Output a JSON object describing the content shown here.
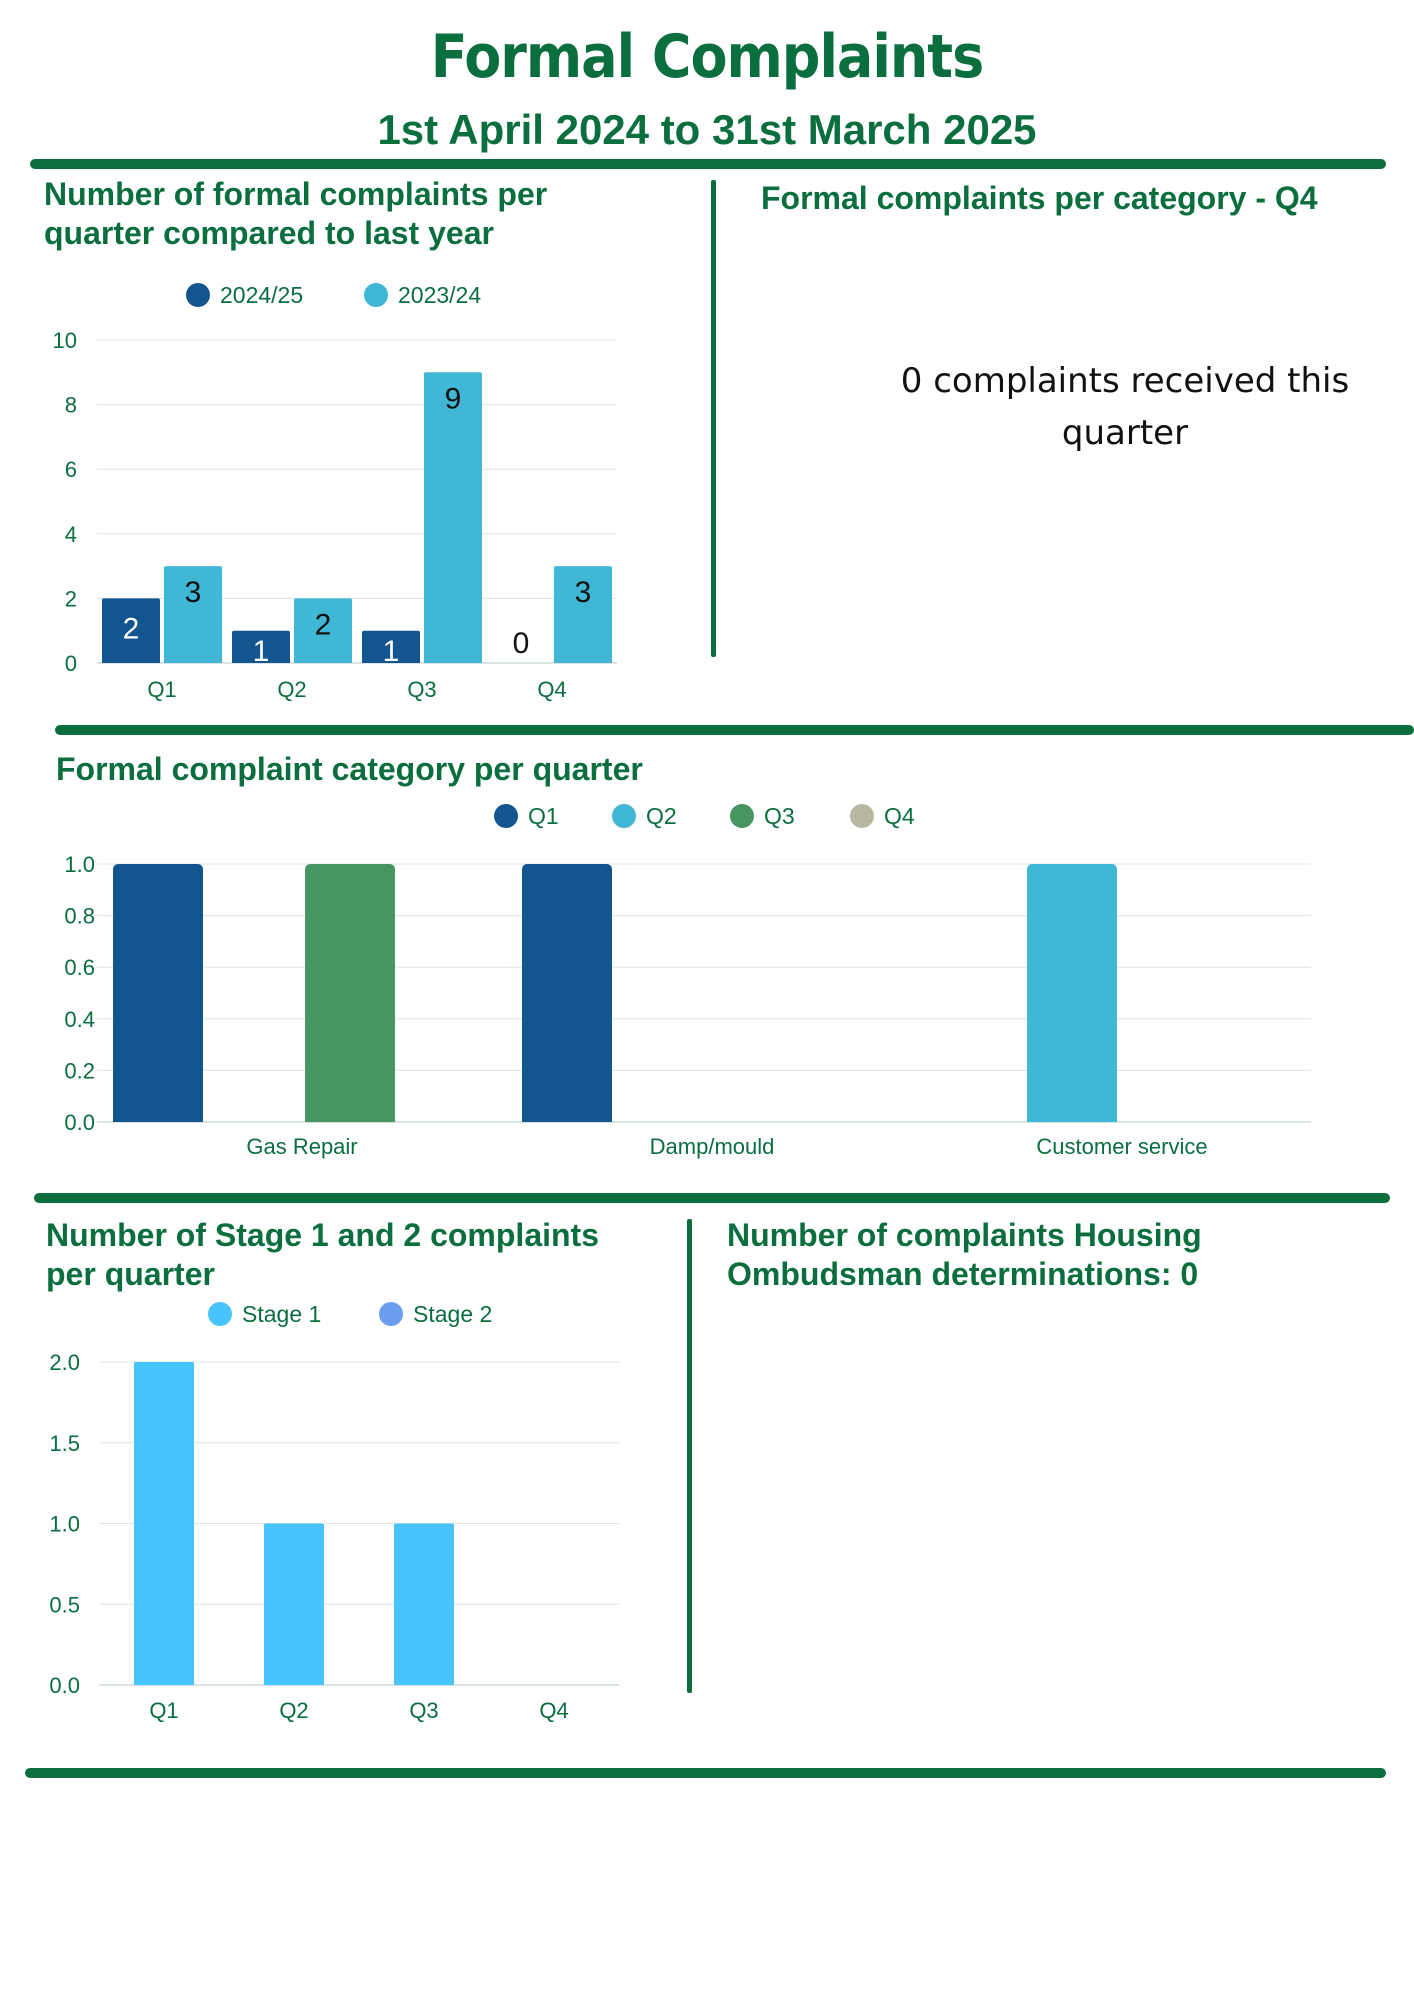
{
  "header": {
    "title": "Formal Complaints",
    "subtitle": "1st April 2024 to 31st March 2025"
  },
  "colors": {
    "brand_green": "#0b6e3f",
    "dark_blue": "#13558f",
    "teal": "#41b7d6",
    "green": "#469561",
    "grey": "#b8b7a2",
    "light_blue": "#47c4fb",
    "periwinkle": "#6c9ef0"
  },
  "section_quarterly": {
    "title_line1": "Number of formal complaints per",
    "title_line2": "quarter compared to last year"
  },
  "section_category_q4": {
    "title": "Formal complaints per category - Q4",
    "note_line1": "0 complaints received this",
    "note_line2": "quarter"
  },
  "section_category_quarter": {
    "title": "Formal complaint category per quarter"
  },
  "section_stage": {
    "title_line1": "Number of Stage 1 and 2 complaints",
    "title_line2": "per quarter"
  },
  "section_ombudsman": {
    "title_line1": "Number of complaints  Housing",
    "title_line2": "Ombudsman determinations: 0"
  },
  "chart_data": [
    {
      "type": "bar",
      "categories": [
        "Q1",
        "Q2",
        "Q3",
        "Q4"
      ],
      "series": [
        {
          "name": "2024/25",
          "values": [
            2,
            1,
            1,
            0
          ],
          "color": "#13558f"
        },
        {
          "name": "2023/24",
          "values": [
            3,
            2,
            9,
            3
          ],
          "color": "#41b7d6"
        }
      ],
      "ylim": [
        0,
        10
      ],
      "yticks": [
        "0",
        "2",
        "4",
        "6",
        "8",
        "10"
      ],
      "data_labels": true,
      "legend": "top-center",
      "grid": true
    },
    {
      "type": "bar",
      "categories": [
        "Gas Repair",
        "Damp/mould",
        "Customer service"
      ],
      "series": [
        {
          "name": "Q1",
          "values": [
            1,
            1,
            0
          ],
          "color": "#13558f"
        },
        {
          "name": "Q2",
          "values": [
            0,
            0,
            1
          ],
          "color": "#41b7d6"
        },
        {
          "name": "Q3",
          "values": [
            1,
            0,
            0
          ],
          "color": "#469561"
        },
        {
          "name": "Q4",
          "values": [
            0,
            0,
            0
          ],
          "color": "#b8b7a2"
        }
      ],
      "ylim": [
        0,
        1
      ],
      "yticks": [
        "0.0",
        "0.2",
        "0.4",
        "0.6",
        "0.8",
        "1.0"
      ],
      "legend": "top-center",
      "grid": true
    },
    {
      "type": "bar",
      "categories": [
        "Q1",
        "Q2",
        "Q3",
        "Q4"
      ],
      "series": [
        {
          "name": "Stage 1",
          "values": [
            2,
            1,
            1,
            0
          ],
          "color": "#47c4fb"
        },
        {
          "name": "Stage 2",
          "values": [
            0,
            0,
            0,
            0
          ],
          "color": "#6c9ef0"
        }
      ],
      "ylim": [
        0,
        2
      ],
      "yticks": [
        "0.0",
        "0.5",
        "1.0",
        "1.5",
        "2.0"
      ],
      "legend": "top-center",
      "grid": true
    }
  ]
}
